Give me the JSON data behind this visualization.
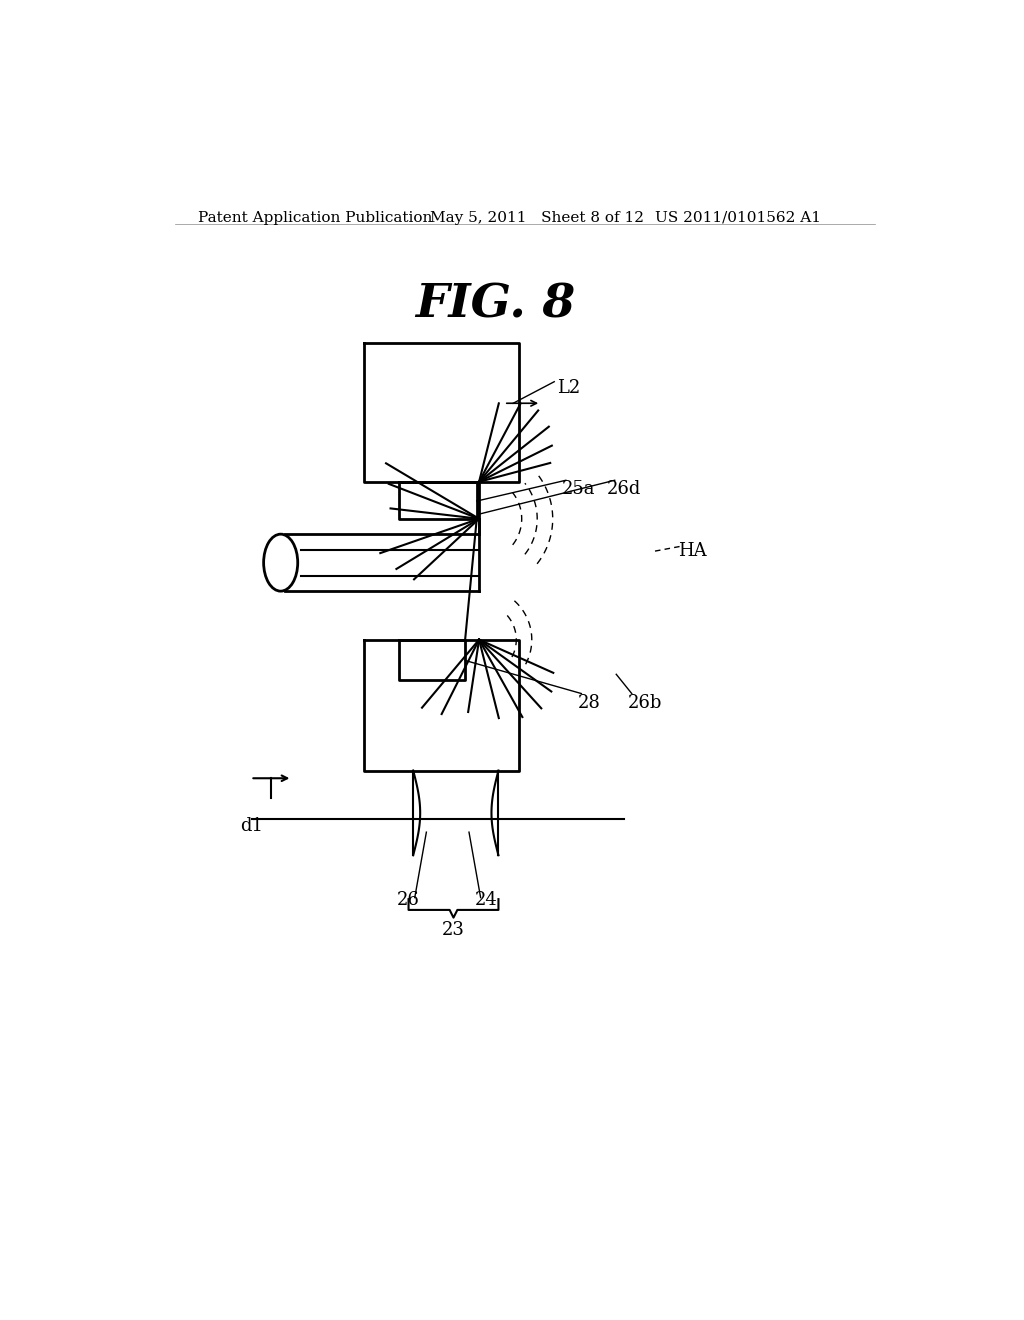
{
  "bg_color": "#ffffff",
  "text_color": "#000000",
  "header_left": "Patent Application Publication",
  "header_mid": "May 5, 2011   Sheet 8 of 12",
  "header_right": "US 2011/0101562 A1",
  "fig_title": "FIG. 8",
  "label_L2": "L2",
  "label_25a": "25a",
  "label_26d": "26d",
  "label_HA": "HA",
  "label_28": "28",
  "label_26b": "26b",
  "label_d1": "d1",
  "label_26": "26",
  "label_24": "24",
  "label_23": "23"
}
